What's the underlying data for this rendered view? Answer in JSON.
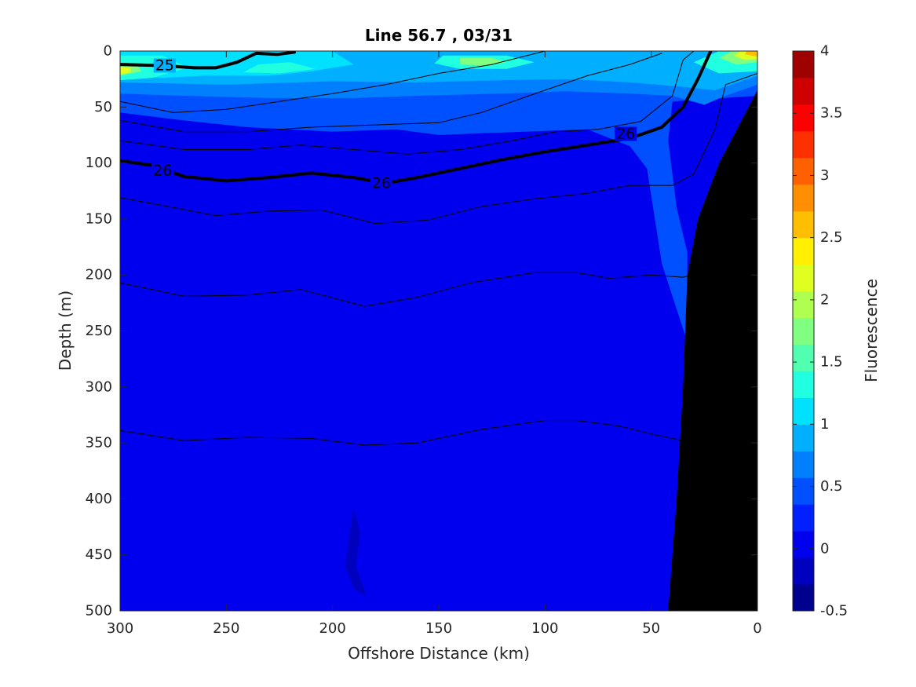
{
  "chart_data": {
    "type": "heatmap",
    "title": "Line 56.7 , 03/31",
    "xlabel": "Offshore Distance (km)",
    "ylabel": "Depth (m)",
    "xlim": [
      300,
      0
    ],
    "ylim": [
      0,
      500
    ],
    "x_reversed": true,
    "y_reversed": true,
    "xticks": [
      "300",
      "250",
      "200",
      "150",
      "100",
      "50",
      "0"
    ],
    "yticks": [
      "0",
      "50",
      "100",
      "150",
      "200",
      "250",
      "300",
      "350",
      "400",
      "450",
      "500"
    ],
    "colorbar": {
      "label": "Fluorescence",
      "range": [
        -0.5,
        4
      ],
      "step": 0.25,
      "ticks": [
        "-0.5",
        "0",
        "0.5",
        "1",
        "1.5",
        "2",
        "2.5",
        "3",
        "3.5",
        "4"
      ],
      "colors": [
        "#00008f",
        "#0000bf",
        "#0000ef",
        "#0020ff",
        "#0050ff",
        "#0080ff",
        "#00b0ff",
        "#00e0ff",
        "#20ffdf",
        "#50ffaf",
        "#80ff80",
        "#afff50",
        "#dfff20",
        "#ffef00",
        "#ffbf00",
        "#ff8f00",
        "#ff6000",
        "#ff3000",
        "#ff0000",
        "#cf0000",
        "#9f0000"
      ]
    },
    "fill_regions": [
      {
        "level": 0.0,
        "points": [
          [
            300,
            0
          ],
          [
            0,
            0
          ],
          [
            0,
            500
          ],
          [
            300,
            500
          ]
        ]
      },
      {
        "level": 0.5,
        "points": [
          [
            300,
            0
          ],
          [
            0,
            0
          ],
          [
            0,
            40
          ],
          [
            40,
            45
          ],
          [
            42,
            80
          ],
          [
            38,
            140
          ],
          [
            33,
            180
          ],
          [
            33,
            260
          ],
          [
            45,
            190
          ],
          [
            52,
            105
          ],
          [
            60,
            85
          ],
          [
            80,
            70
          ],
          [
            110,
            72
          ],
          [
            150,
            75
          ],
          [
            170,
            70
          ],
          [
            200,
            72
          ],
          [
            240,
            68
          ],
          [
            270,
            62
          ],
          [
            300,
            55
          ]
        ]
      },
      {
        "level": 0.75,
        "points": [
          [
            300,
            0
          ],
          [
            0,
            0
          ],
          [
            0,
            30
          ],
          [
            15,
            40
          ],
          [
            25,
            48
          ],
          [
            40,
            40
          ],
          [
            60,
            38
          ],
          [
            90,
            36
          ],
          [
            120,
            38
          ],
          [
            160,
            40
          ],
          [
            190,
            42
          ],
          [
            230,
            42
          ],
          [
            270,
            40
          ],
          [
            300,
            38
          ]
        ]
      },
      {
        "level": 1.0,
        "points": [
          [
            300,
            0
          ],
          [
            0,
            0
          ],
          [
            0,
            22
          ],
          [
            20,
            35
          ],
          [
            35,
            32
          ],
          [
            60,
            28
          ],
          [
            90,
            25
          ],
          [
            120,
            26
          ],
          [
            160,
            28
          ],
          [
            200,
            27
          ],
          [
            250,
            30
          ],
          [
            300,
            28
          ]
        ]
      },
      {
        "level": 1.25,
        "points": [
          [
            300,
            0
          ],
          [
            200,
            0
          ],
          [
            190,
            12
          ],
          [
            210,
            18
          ],
          [
            230,
            22
          ],
          [
            260,
            22
          ],
          [
            280,
            24
          ],
          [
            300,
            22
          ]
        ]
      },
      {
        "level": 1.5,
        "points": [
          [
            300,
            4
          ],
          [
            280,
            4
          ],
          [
            268,
            15
          ],
          [
            285,
            24
          ],
          [
            300,
            26
          ]
        ]
      },
      {
        "level": 1.5,
        "points": [
          [
            235,
            12
          ],
          [
            220,
            10
          ],
          [
            208,
            16
          ],
          [
            225,
            20
          ],
          [
            242,
            19
          ]
        ]
      },
      {
        "level": 1.5,
        "points": [
          [
            148,
            4
          ],
          [
            118,
            4
          ],
          [
            105,
            10
          ],
          [
            118,
            16
          ],
          [
            140,
            16
          ],
          [
            152,
            11
          ]
        ]
      },
      {
        "level": 1.5,
        "points": [
          [
            0,
            0
          ],
          [
            18,
            0
          ],
          [
            30,
            10
          ],
          [
            18,
            20
          ],
          [
            0,
            18
          ]
        ]
      },
      {
        "level": 2.0,
        "points": [
          [
            140,
            6
          ],
          [
            125,
            6
          ],
          [
            118,
            10
          ],
          [
            128,
            13
          ],
          [
            140,
            12
          ]
        ]
      },
      {
        "level": 2.0,
        "points": [
          [
            300,
            12
          ],
          [
            292,
            12
          ],
          [
            290,
            18
          ],
          [
            300,
            22
          ]
        ]
      },
      {
        "level": 2.0,
        "points": [
          [
            0,
            0
          ],
          [
            12,
            0
          ],
          [
            18,
            6
          ],
          [
            10,
            12
          ],
          [
            0,
            10
          ]
        ]
      },
      {
        "level": 2.5,
        "points": [
          [
            300,
            14
          ],
          [
            295,
            15
          ],
          [
            295,
            19
          ],
          [
            300,
            21
          ]
        ]
      },
      {
        "level": 2.5,
        "points": [
          [
            0,
            0
          ],
          [
            8,
            0
          ],
          [
            11,
            4
          ],
          [
            6,
            8
          ],
          [
            0,
            7
          ]
        ]
      },
      {
        "level": 3.0,
        "points": [
          [
            0,
            0
          ],
          [
            5,
            0
          ],
          [
            6,
            3
          ],
          [
            0,
            5
          ]
        ]
      },
      {
        "level": -0.25,
        "points": [
          [
            190,
            408
          ],
          [
            187,
            430
          ],
          [
            189,
            460
          ],
          [
            184,
            487
          ],
          [
            190,
            480
          ],
          [
            194,
            460
          ],
          [
            192,
            430
          ]
        ]
      }
    ],
    "isopycnals": [
      {
        "level": 25,
        "bold": true,
        "labeled": true,
        "label_at": [
          279,
          13
        ],
        "points": [
          [
            300,
            12
          ],
          [
            280,
            13
          ],
          [
            265,
            15
          ],
          [
            255,
            15
          ],
          [
            245,
            10
          ],
          [
            236,
            2
          ],
          [
            226,
            3
          ],
          [
            218,
            1
          ]
        ]
      },
      {
        "level": 26,
        "bold": true,
        "labeled": true,
        "label_at": [
          [
            280,
            107
          ],
          [
            177,
            118
          ],
          [
            62,
            74
          ]
        ],
        "points": [
          [
            300,
            98
          ],
          [
            285,
            102
          ],
          [
            270,
            112
          ],
          [
            250,
            116
          ],
          [
            230,
            113
          ],
          [
            210,
            109
          ],
          [
            190,
            113
          ],
          [
            175,
            118
          ],
          [
            160,
            113
          ],
          [
            140,
            105
          ],
          [
            120,
            97
          ],
          [
            100,
            90
          ],
          [
            80,
            84
          ],
          [
            60,
            78
          ],
          [
            45,
            68
          ],
          [
            35,
            50
          ],
          [
            28,
            25
          ],
          [
            22,
            0
          ]
        ]
      },
      {
        "level": null,
        "bold": false,
        "points": [
          [
            300,
            45
          ],
          [
            275,
            55
          ],
          [
            250,
            52
          ],
          [
            225,
            45
          ],
          [
            200,
            38
          ],
          [
            175,
            30
          ],
          [
            150,
            20
          ],
          [
            125,
            12
          ],
          [
            100,
            0
          ]
        ]
      },
      {
        "level": null,
        "bold": false,
        "points": [
          [
            300,
            62
          ],
          [
            270,
            72
          ],
          [
            240,
            72
          ],
          [
            210,
            68
          ],
          [
            180,
            66
          ],
          [
            150,
            64
          ],
          [
            130,
            55
          ],
          [
            100,
            35
          ],
          [
            80,
            22
          ],
          [
            60,
            12
          ],
          [
            45,
            2
          ]
        ]
      },
      {
        "level": null,
        "bold": false,
        "points": [
          [
            300,
            80
          ],
          [
            270,
            88
          ],
          [
            240,
            88
          ],
          [
            215,
            84
          ],
          [
            190,
            88
          ],
          [
            165,
            92
          ],
          [
            140,
            88
          ],
          [
            115,
            80
          ],
          [
            95,
            72
          ],
          [
            75,
            70
          ],
          [
            55,
            63
          ],
          [
            40,
            40
          ],
          [
            35,
            8
          ],
          [
            30,
            0
          ]
        ]
      },
      {
        "level": null,
        "bold": false,
        "points": [
          [
            300,
            131
          ],
          [
            280,
            138
          ],
          [
            255,
            147
          ],
          [
            230,
            143
          ],
          [
            205,
            142
          ],
          [
            180,
            154
          ],
          [
            155,
            151
          ],
          [
            130,
            139
          ],
          [
            105,
            132
          ],
          [
            80,
            127
          ],
          [
            60,
            120
          ],
          [
            40,
            120
          ],
          [
            30,
            110
          ],
          [
            20,
            70
          ],
          [
            15,
            30
          ],
          [
            0,
            20
          ]
        ]
      },
      {
        "level": null,
        "bold": false,
        "points": [
          [
            300,
            207
          ],
          [
            270,
            219
          ],
          [
            240,
            218
          ],
          [
            215,
            213
          ],
          [
            185,
            228
          ],
          [
            160,
            220
          ],
          [
            135,
            207
          ],
          [
            105,
            198
          ],
          [
            85,
            198
          ],
          [
            70,
            203
          ],
          [
            50,
            200
          ],
          [
            35,
            202
          ],
          [
            25,
            197
          ]
        ]
      },
      {
        "level": null,
        "bold": false,
        "points": [
          [
            300,
            339
          ],
          [
            270,
            348
          ],
          [
            240,
            345
          ],
          [
            210,
            346
          ],
          [
            185,
            352
          ],
          [
            160,
            350
          ],
          [
            130,
            338
          ],
          [
            100,
            330
          ],
          [
            85,
            330
          ],
          [
            65,
            335
          ],
          [
            50,
            342
          ],
          [
            35,
            348
          ],
          [
            30,
            347
          ]
        ]
      }
    ],
    "bathymetry": [
      [
        0,
        35
      ],
      [
        18,
        100
      ],
      [
        28,
        150
      ],
      [
        33,
        200
      ],
      [
        35,
        300
      ],
      [
        38,
        400
      ],
      [
        42,
        500
      ],
      [
        0,
        500
      ]
    ]
  }
}
